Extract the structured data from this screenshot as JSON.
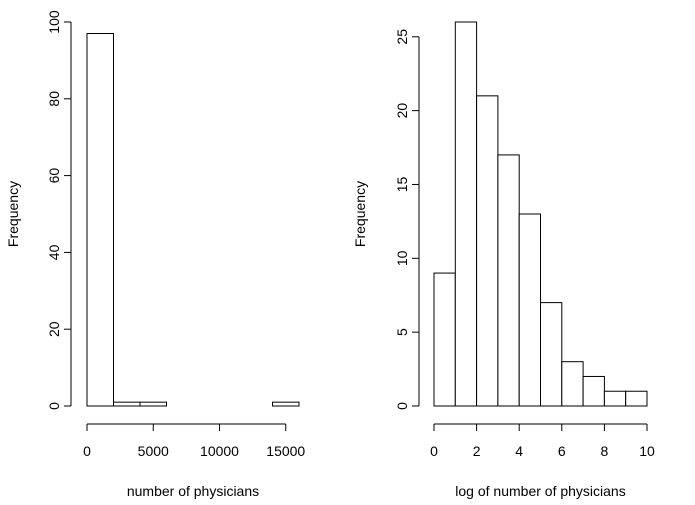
{
  "chart_data": [
    {
      "type": "bar",
      "title": "",
      "xlabel": "number of physicians",
      "ylabel": "Frequency",
      "xlim": [
        0,
        16000
      ],
      "ylim": [
        0,
        100
      ],
      "x_ticks": [
        0,
        5000,
        10000,
        15000
      ],
      "y_ticks": [
        0,
        20,
        40,
        60,
        80,
        100
      ],
      "bins": [
        {
          "start": 0,
          "end": 2000,
          "count": 97
        },
        {
          "start": 2000,
          "end": 4000,
          "count": 1
        },
        {
          "start": 4000,
          "end": 6000,
          "count": 1
        },
        {
          "start": 6000,
          "end": 8000,
          "count": 0
        },
        {
          "start": 8000,
          "end": 10000,
          "count": 0
        },
        {
          "start": 10000,
          "end": 12000,
          "count": 0
        },
        {
          "start": 12000,
          "end": 14000,
          "count": 0
        },
        {
          "start": 14000,
          "end": 16000,
          "count": 1
        }
      ],
      "grid": false,
      "bar_fill": "#ffffff",
      "bar_stroke": "#000000"
    },
    {
      "type": "bar",
      "title": "",
      "xlabel": "log of number of physicians",
      "ylabel": "Frequency",
      "xlim": [
        0,
        10
      ],
      "ylim": [
        0,
        26
      ],
      "x_ticks": [
        0,
        2,
        4,
        6,
        8,
        10
      ],
      "y_ticks": [
        0,
        5,
        10,
        15,
        20,
        25
      ],
      "bins": [
        {
          "start": 0,
          "end": 1,
          "count": 9
        },
        {
          "start": 1,
          "end": 2,
          "count": 26
        },
        {
          "start": 2,
          "end": 3,
          "count": 21
        },
        {
          "start": 3,
          "end": 4,
          "count": 17
        },
        {
          "start": 4,
          "end": 5,
          "count": 13
        },
        {
          "start": 5,
          "end": 6,
          "count": 7
        },
        {
          "start": 6,
          "end": 7,
          "count": 3
        },
        {
          "start": 7,
          "end": 8,
          "count": 2
        },
        {
          "start": 8,
          "end": 9,
          "count": 1
        },
        {
          "start": 9,
          "end": 10,
          "count": 1
        }
      ],
      "grid": false,
      "bar_fill": "#ffffff",
      "bar_stroke": "#000000"
    }
  ]
}
